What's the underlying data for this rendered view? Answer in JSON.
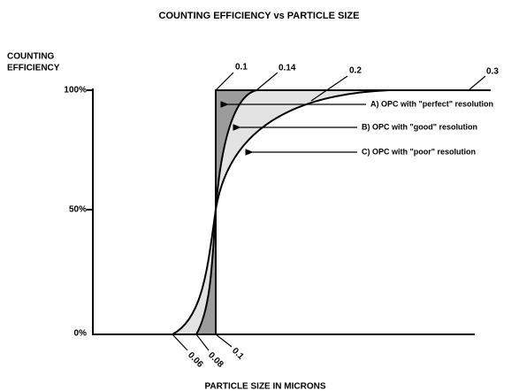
{
  "title": "COUNTING EFFICIENCY vs PARTICLE SIZE",
  "y_axis": {
    "label_lines": [
      "COUNTING",
      "EFFICIENCY"
    ],
    "tick_labels": [
      "100%",
      "50%",
      "0%"
    ]
  },
  "x_axis": {
    "label": "PARTICLE SIZE IN MICRONS"
  },
  "size_labels": {
    "top": [
      "0.1",
      "0.14",
      "0.2",
      "0.3"
    ],
    "bottom": [
      "0.06",
      "0.08",
      "0.1"
    ]
  },
  "curves": [
    {
      "label": "A) OPC with \"perfect\" resolution"
    },
    {
      "label": "B) OPC with \"good\" resolution"
    },
    {
      "label": "C) OPC with \"poor\" resolution"
    }
  ]
}
